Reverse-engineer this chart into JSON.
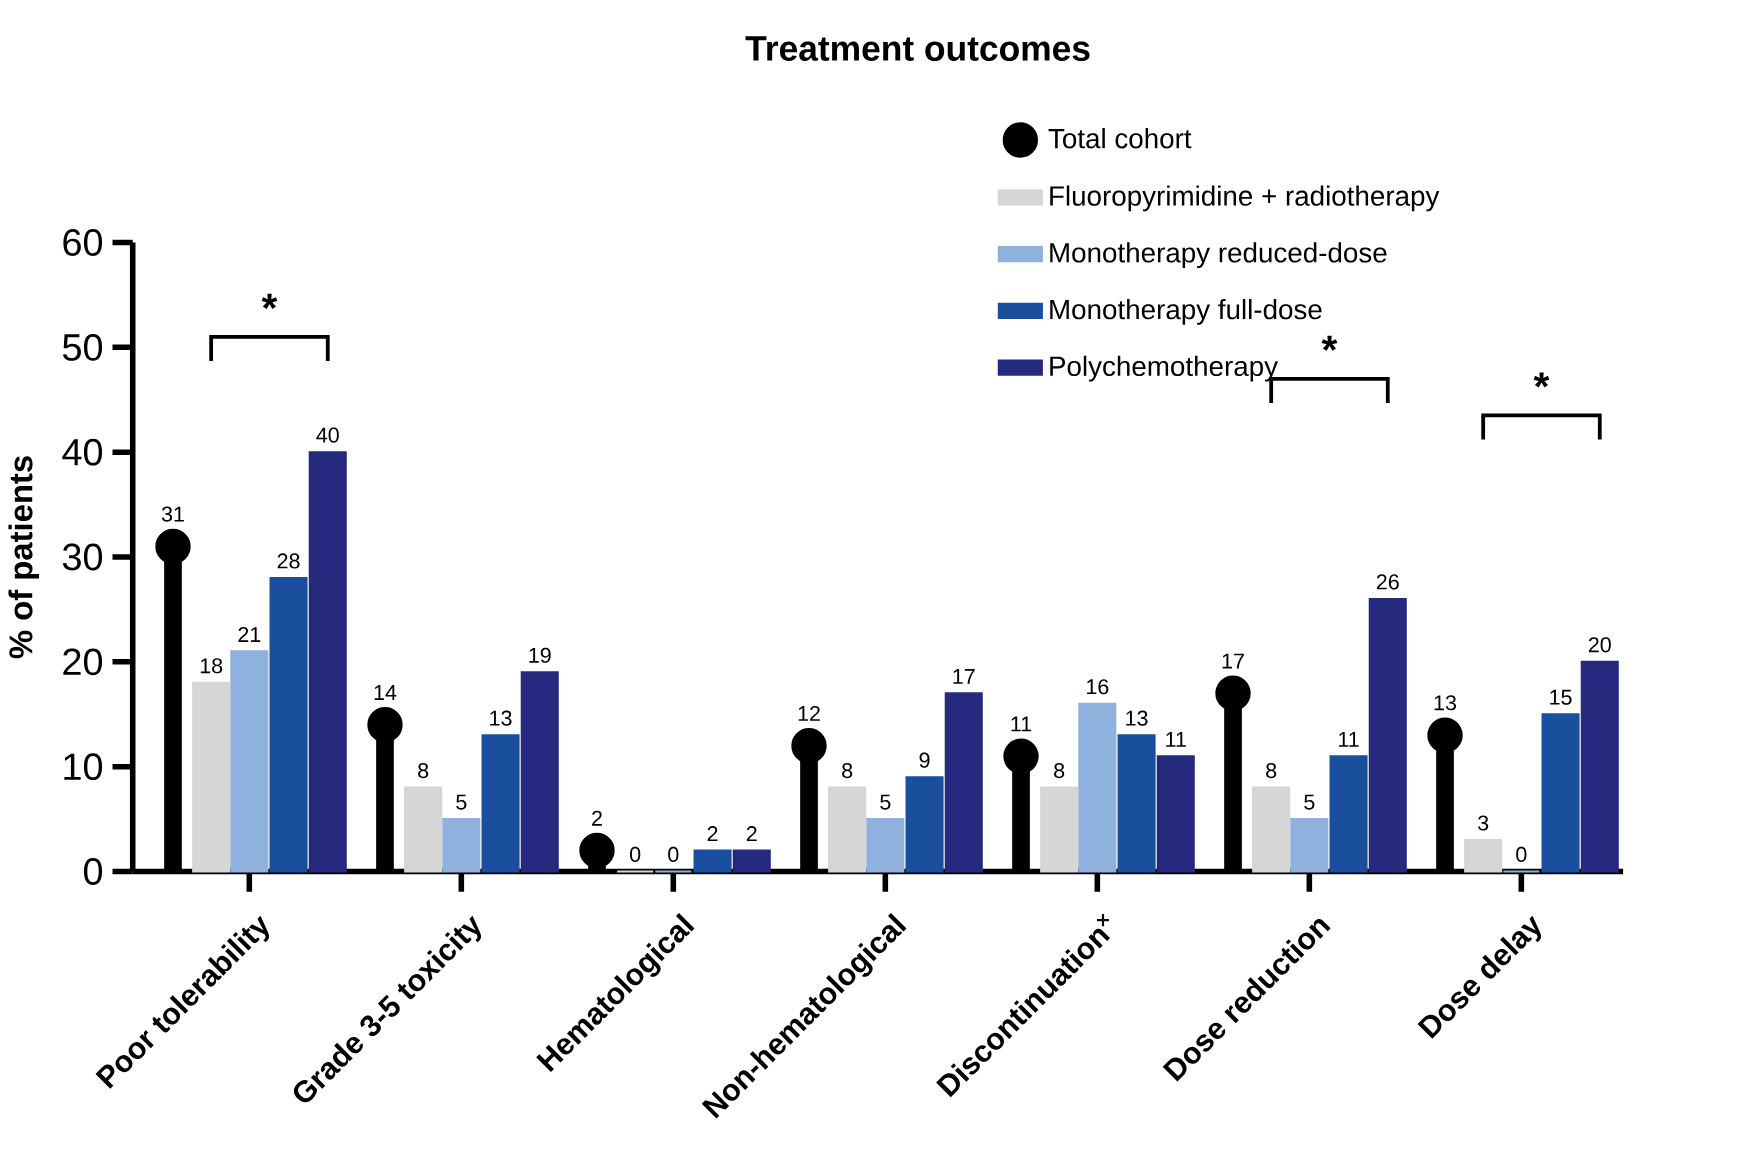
{
  "chart_data": {
    "type": "bar",
    "title": "Treatment outcomes",
    "ylabel": "% of patients",
    "categories": [
      "Poor tolerability",
      "Grade 3-5 toxicity",
      "Hematological",
      "Non-hematological",
      "Discontinuation$^{×}$",
      "Dose reduction",
      "Dose delay"
    ],
    "series": [
      {
        "name": "Total cohort",
        "type": "lollipop",
        "color": "#000000",
        "values": [
          31,
          14,
          2,
          12,
          11,
          17,
          13
        ]
      },
      {
        "name": "Fluoropyrimidine + radiotherapy",
        "color": "#d6d6d6",
        "values": [
          18,
          8,
          0,
          8,
          8,
          8,
          3
        ]
      },
      {
        "name": "Monotherapy reduced-dose",
        "color": "#8fb1de",
        "values": [
          21,
          5,
          0,
          5,
          16,
          5,
          0
        ]
      },
      {
        "name": "Monotherapy full-dose",
        "color": "#1a4f9e",
        "values": [
          28,
          13,
          2,
          9,
          13,
          11,
          15
        ]
      },
      {
        "name": "Polychemotherapy",
        "color": "#262a7e",
        "values": [
          40,
          19,
          2,
          17,
          11,
          26,
          20
        ]
      }
    ],
    "ylim": [
      0,
      60
    ],
    "yticks": [
      0,
      10,
      20,
      30,
      40,
      50,
      60
    ],
    "data_labels": true,
    "legend": "top right",
    "grid": false,
    "annotations": [
      "*",
      "*",
      "*"
    ]
  }
}
